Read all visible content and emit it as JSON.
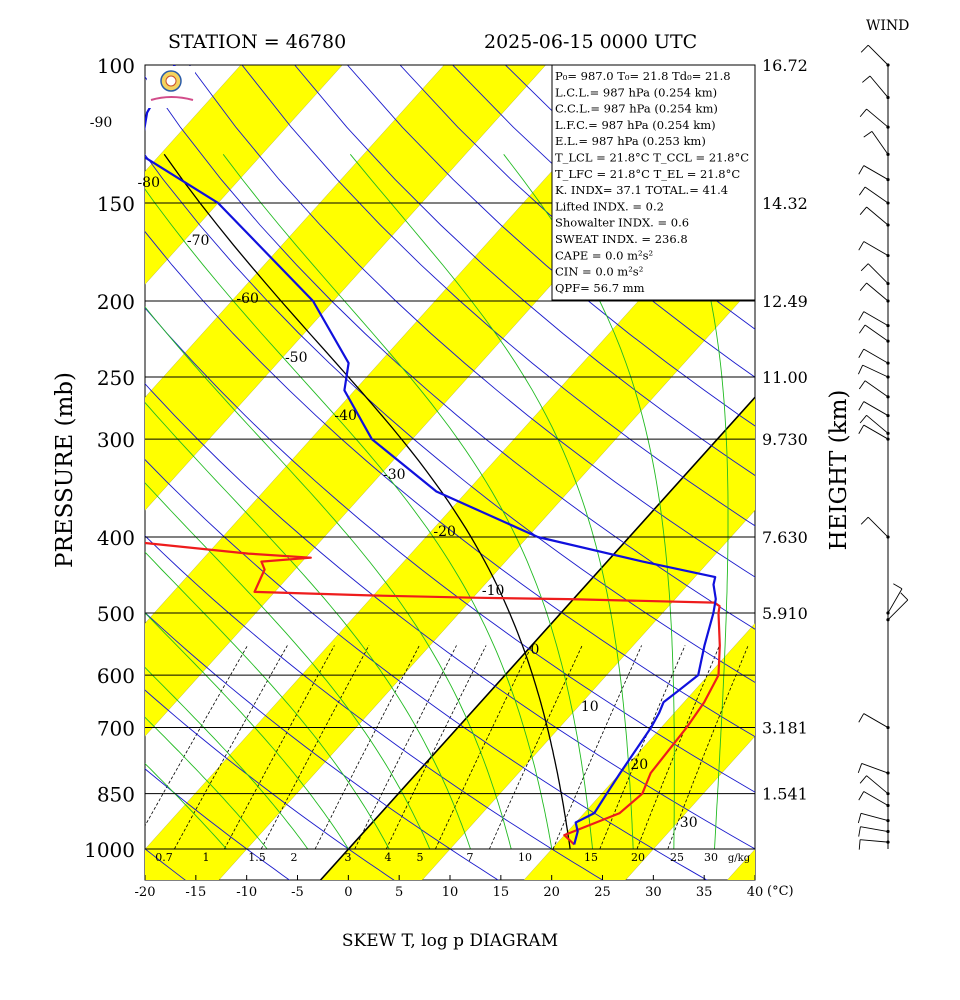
{
  "header": {
    "station": "STATION = 46780",
    "datetime": "2025-06-15 0000 UTC",
    "wind_label": "WIND"
  },
  "footer": {
    "title": "SKEW T, log p DIAGRAM"
  },
  "info_box": {
    "lines": [
      "P₀= 987.0 T₀= 21.8 Td₀= 21.8",
      "L.C.L.= 987 hPa (0.254 km)",
      "C.C.L.= 987 hPa (0.254 km)",
      "L.F.C.= 987 hPa (0.254 km)",
      "E.L.= 987 hPa (0.253 km)",
      "T_LCL = 21.8°C T_CCL = 21.8°C",
      "T_LFC = 21.8°C T_EL = 21.8°C",
      "K. INDX= 37.1 TOTAL.= 41.4",
      "Lifted INDX. = 0.2",
      "Showalter INDX. = 0.6",
      "SWEAT INDX. = 236.8",
      "CAPE = 0.0 m²s²",
      "CIN = 0.0 m²s²",
      "QPF= 56.7 mm"
    ]
  },
  "colors": {
    "temperature": "#ee1c1c",
    "dewpoint": "#1010dd",
    "dry_adiabat": "#1a1acc",
    "moist_adiabat": "#22bb22",
    "yellow_band": "#ffff00"
  },
  "chart_data": {
    "type": "line",
    "xlabel": "(°C)",
    "ylabel": "PRESSURE (mb)",
    "y2label": "HEIGHT (km)",
    "xlim": [
      -20,
      40
    ],
    "ylim": [
      1000,
      100
    ],
    "x_ticks": [
      -20,
      -15,
      -10,
      -5,
      0,
      5,
      10,
      15,
      20,
      25,
      30,
      35,
      40
    ],
    "pressure_ticks": [
      100,
      150,
      200,
      250,
      300,
      400,
      500,
      600,
      700,
      850,
      1000
    ],
    "height_ticks": [
      {
        "p": 100,
        "label": "16.72"
      },
      {
        "p": 150,
        "label": "14.32"
      },
      {
        "p": 200,
        "label": "12.49"
      },
      {
        "p": 250,
        "label": "11.00"
      },
      {
        "p": 300,
        "label": "9.730"
      },
      {
        "p": 400,
        "label": "7.630"
      },
      {
        "p": 500,
        "label": "5.910"
      },
      {
        "p": 700,
        "label": "3.181"
      },
      {
        "p": 850,
        "label": "1.541"
      }
    ],
    "isotherm_labels": [
      "-90",
      "-80",
      "-70",
      "-60",
      "-50",
      "-40",
      "-30",
      "-20",
      "-10",
      "0",
      "10",
      "20",
      "30"
    ],
    "mixing_ratio_labels": [
      "0.7",
      "1",
      "1.5",
      "2",
      "3",
      "4",
      "5",
      "7",
      "10",
      "15",
      "20",
      "25",
      "30"
    ],
    "mixing_ratio_unit": "g/kg",
    "series": [
      {
        "name": "temperature",
        "points": [
          [
            987,
            21.8
          ],
          [
            960,
            20.0
          ],
          [
            925,
            22.0
          ],
          [
            900,
            23.5
          ],
          [
            850,
            24.0
          ],
          [
            800,
            23.0
          ],
          [
            700,
            22.5
          ],
          [
            650,
            22.0
          ],
          [
            600,
            21.0
          ],
          [
            550,
            18.5
          ],
          [
            500,
            15.5
          ],
          [
            490,
            15.0
          ],
          [
            485,
            14.2
          ],
          [
            480,
            -0.5
          ],
          [
            478,
            -10.0
          ],
          [
            475,
            -20.0
          ],
          [
            470,
            -32.0
          ],
          [
            440,
            -33.0
          ],
          [
            430,
            -34.0
          ],
          [
            425,
            -29.5
          ],
          [
            420,
            -36.0
          ],
          [
            405,
            -49.0
          ],
          [
            400,
            -55.0
          ],
          [
            395,
            -55.0
          ],
          [
            300,
            -58.0
          ],
          [
            295,
            -58.0
          ],
          [
            260,
            -63.5
          ],
          [
            250,
            -67.0
          ],
          [
            200,
            -78.0
          ],
          [
            150,
            -86.0
          ],
          [
            100,
            -95.0
          ]
        ]
      },
      {
        "name": "dewpoint",
        "points": [
          [
            987,
            21.8
          ],
          [
            950,
            21.0
          ],
          [
            925,
            20.0
          ],
          [
            900,
            21.0
          ],
          [
            850,
            20.5
          ],
          [
            800,
            20.0
          ],
          [
            700,
            19.0
          ],
          [
            670,
            18.5
          ],
          [
            650,
            18.0
          ],
          [
            625,
            18.5
          ],
          [
            600,
            19.0
          ],
          [
            550,
            17.0
          ],
          [
            500,
            15.0
          ],
          [
            480,
            14.0
          ],
          [
            460,
            12.5
          ],
          [
            450,
            12.0
          ],
          [
            430,
            3.5
          ],
          [
            400,
            -9.0
          ],
          [
            350,
            -23.0
          ],
          [
            300,
            -34.0
          ],
          [
            260,
            -41.0
          ],
          [
            240,
            -43.0
          ],
          [
            200,
            -52.0
          ],
          [
            150,
            -70.0
          ],
          [
            130,
            -82.0
          ],
          [
            115,
            -85.0
          ],
          [
            100,
            -86.5
          ]
        ]
      }
    ],
    "parcel_path_visible": true,
    "legend": "none"
  }
}
